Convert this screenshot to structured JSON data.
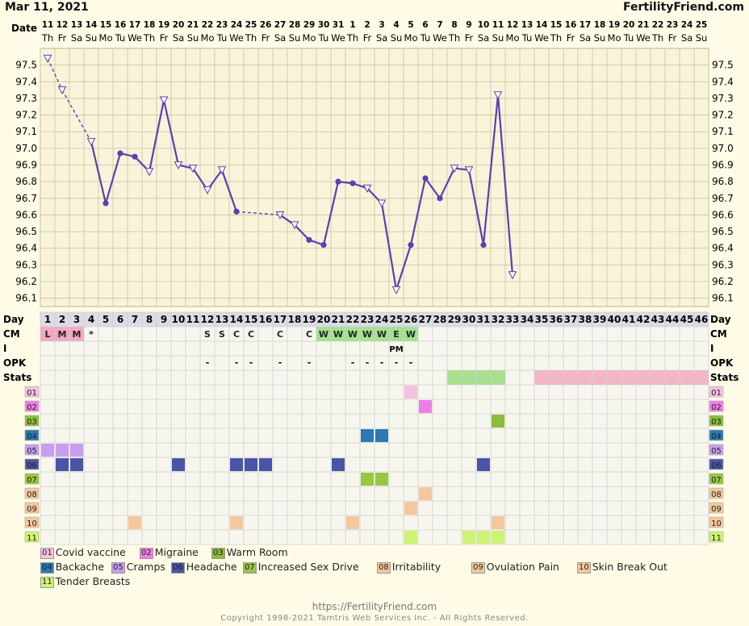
{
  "header": {
    "date": "Mar 11, 2021",
    "site": "FertilityFriend.com"
  },
  "footer": {
    "url": "https://FertilityFriend.com",
    "copyright": "Copyright 1998-2021 Tamtris Web Services Inc. - All Rights Reserved."
  },
  "colors": {
    "line": "#5a3fb5",
    "grid": "#c8c3a3",
    "plot_bg": "#f9f4d9",
    "table_bg": "#f7f6ee"
  },
  "chart_data": {
    "type": "line",
    "title": "",
    "ylabel": "",
    "ylim": [
      96.05,
      97.6
    ],
    "y_ticks": [
      "97.5",
      "97.4",
      "97.3",
      "97.2",
      "97.1",
      "97.0",
      "96.9",
      "96.8",
      "96.7",
      "96.6",
      "96.5",
      "96.4",
      "96.3",
      "96.2",
      "96.1"
    ],
    "row_labels": {
      "date": "Date",
      "day": "Day",
      "cm": "CM",
      "i": "I",
      "opk": "OPK",
      "stats": "Stats"
    },
    "dates": [
      "11",
      "12",
      "13",
      "14",
      "15",
      "16",
      "17",
      "18",
      "19",
      "20",
      "21",
      "22",
      "23",
      "24",
      "25",
      "26",
      "27",
      "28",
      "29",
      "30",
      "31",
      "1",
      "2",
      "3",
      "4",
      "5",
      "6",
      "7",
      "8",
      "9",
      "10",
      "11",
      "12",
      "13",
      "14",
      "15",
      "16",
      "17",
      "18",
      "19",
      "20",
      "21",
      "22",
      "23",
      "24",
      "25"
    ],
    "weekdays": [
      "Th",
      "Fr",
      "Sa",
      "Su",
      "Mo",
      "Tu",
      "We",
      "Th",
      "Fr",
      "Sa",
      "Su",
      "Mo",
      "Tu",
      "We",
      "Th",
      "Fr",
      "Sa",
      "Su",
      "Mo",
      "Tu",
      "We",
      "Th",
      "Fr",
      "Sa",
      "Su",
      "Mo",
      "Tu",
      "We",
      "Th",
      "Fr",
      "Sa",
      "Su",
      "Mo",
      "Tu",
      "We",
      "Th",
      "Fr",
      "Sa",
      "Su",
      "Mo",
      "Tu",
      "We",
      "Th",
      "Fr",
      "Sa",
      "Su"
    ],
    "days": [
      "1",
      "2",
      "3",
      "4",
      "5",
      "6",
      "7",
      "8",
      "9",
      "10",
      "11",
      "12",
      "13",
      "14",
      "15",
      "16",
      "17",
      "18",
      "19",
      "20",
      "21",
      "22",
      "23",
      "24",
      "25",
      "26",
      "27",
      "28",
      "29",
      "30",
      "31",
      "32",
      "33",
      "34",
      "35",
      "36",
      "37",
      "38",
      "39",
      "40",
      "41",
      "42",
      "43",
      "44",
      "45",
      "46"
    ],
    "temps": [
      {
        "day": 1,
        "y": 97.54,
        "m": "tri"
      },
      {
        "day": 2,
        "y": 97.35,
        "m": "tri"
      },
      {
        "day": 4,
        "y": 97.04,
        "m": "tri"
      },
      {
        "day": 5,
        "y": 96.67,
        "m": "dot"
      },
      {
        "day": 6,
        "y": 96.97,
        "m": "dot"
      },
      {
        "day": 7,
        "y": 96.95,
        "m": "dot"
      },
      {
        "day": 8,
        "y": 96.86,
        "m": "tri"
      },
      {
        "day": 9,
        "y": 97.29,
        "m": "tri"
      },
      {
        "day": 10,
        "y": 96.9,
        "m": "tri"
      },
      {
        "day": 11,
        "y": 96.88,
        "m": "tri"
      },
      {
        "day": 12,
        "y": 96.75,
        "m": "tri"
      },
      {
        "day": 13,
        "y": 96.87,
        "m": "tri"
      },
      {
        "day": 14,
        "y": 96.62,
        "m": "dot"
      },
      {
        "day": 17,
        "y": 96.6,
        "m": "tri"
      },
      {
        "day": 18,
        "y": 96.54,
        "m": "tri"
      },
      {
        "day": 19,
        "y": 96.45,
        "m": "dot"
      },
      {
        "day": 20,
        "y": 96.42,
        "m": "dot"
      },
      {
        "day": 21,
        "y": 96.8,
        "m": "dot"
      },
      {
        "day": 22,
        "y": 96.79,
        "m": "dot"
      },
      {
        "day": 23,
        "y": 96.76,
        "m": "tri"
      },
      {
        "day": 24,
        "y": 96.67,
        "m": "tri"
      },
      {
        "day": 25,
        "y": 96.15,
        "m": "tri"
      },
      {
        "day": 26,
        "y": 96.42,
        "m": "dot"
      },
      {
        "day": 27,
        "y": 96.82,
        "m": "dot"
      },
      {
        "day": 28,
        "y": 96.7,
        "m": "dot"
      },
      {
        "day": 29,
        "y": 96.88,
        "m": "tri"
      },
      {
        "day": 30,
        "y": 96.87,
        "m": "tri"
      },
      {
        "day": 31,
        "y": 96.42,
        "m": "dot"
      },
      {
        "day": 32,
        "y": 97.32,
        "m": "tri"
      },
      {
        "day": 33,
        "y": 96.24,
        "m": "tri"
      }
    ],
    "dashed_segments": [
      [
        1,
        2
      ],
      [
        2,
        4
      ],
      [
        14,
        17
      ]
    ],
    "solid_segments": [
      [
        4,
        5
      ],
      [
        5,
        6
      ],
      [
        6,
        7
      ],
      [
        7,
        8
      ],
      [
        8,
        9
      ],
      [
        9,
        10
      ],
      [
        10,
        11
      ],
      [
        11,
        12
      ],
      [
        12,
        13
      ],
      [
        13,
        14
      ],
      [
        17,
        18
      ],
      [
        18,
        19
      ],
      [
        19,
        20
      ],
      [
        20,
        21
      ],
      [
        21,
        22
      ],
      [
        22,
        23
      ],
      [
        23,
        24
      ],
      [
        24,
        25
      ],
      [
        25,
        26
      ],
      [
        26,
        27
      ],
      [
        27,
        28
      ],
      [
        28,
        29
      ],
      [
        29,
        30
      ],
      [
        30,
        31
      ],
      [
        31,
        32
      ],
      [
        32,
        33
      ]
    ],
    "cm": [
      {
        "day": 1,
        "v": "L",
        "c": "#f2a7c3"
      },
      {
        "day": 2,
        "v": "M",
        "c": "#f2a7c3"
      },
      {
        "day": 3,
        "v": "M",
        "c": "#f2a7c3"
      },
      {
        "day": 4,
        "v": "*",
        "c": ""
      },
      {
        "day": 12,
        "v": "S",
        "c": ""
      },
      {
        "day": 13,
        "v": "S",
        "c": ""
      },
      {
        "day": 14,
        "v": "C",
        "c": ""
      },
      {
        "day": 15,
        "v": "C",
        "c": ""
      },
      {
        "day": 17,
        "v": "C",
        "c": ""
      },
      {
        "day": 19,
        "v": "C",
        "c": ""
      },
      {
        "day": 20,
        "v": "W",
        "c": "#a3e28f"
      },
      {
        "day": 21,
        "v": "W",
        "c": "#a3e28f"
      },
      {
        "day": 22,
        "v": "W",
        "c": "#a3e28f"
      },
      {
        "day": 23,
        "v": "W",
        "c": "#a3e28f"
      },
      {
        "day": 24,
        "v": "W",
        "c": "#a3e28f"
      },
      {
        "day": 25,
        "v": "E",
        "c": "#a3e28f"
      },
      {
        "day": 26,
        "v": "W",
        "c": "#a3e28f"
      }
    ],
    "intercourse": [
      {
        "day": 25,
        "v": "PM"
      }
    ],
    "opk": [
      {
        "day": 12,
        "v": "-"
      },
      {
        "day": 14,
        "v": "-"
      },
      {
        "day": 15,
        "v": "-"
      },
      {
        "day": 17,
        "v": "-"
      },
      {
        "day": 19,
        "v": "-"
      },
      {
        "day": 22,
        "v": "-"
      },
      {
        "day": 23,
        "v": "-"
      },
      {
        "day": 24,
        "v": "-"
      },
      {
        "day": 25,
        "v": "-"
      },
      {
        "day": 26,
        "v": "-"
      }
    ],
    "stats": [
      {
        "from": 29,
        "to": 32,
        "c": "#a8e08f"
      },
      {
        "from": 35,
        "to": 46,
        "c": "#f3b6c8"
      }
    ],
    "symptoms": [
      {
        "code": "01",
        "name": "Covid vaccine",
        "c": "#f4c2e0",
        "days": [
          26
        ]
      },
      {
        "code": "02",
        "name": "Migraine",
        "c": "#f07ee6",
        "days": [
          27
        ]
      },
      {
        "code": "03",
        "name": "Warm Room",
        "c": "#8dbb3a",
        "days": [
          32
        ]
      },
      {
        "code": "04",
        "name": "Backache",
        "c": "#2b79b5",
        "days": [
          23,
          24
        ]
      },
      {
        "code": "05",
        "name": "Cramps",
        "c": "#c79ef2",
        "days": [
          1,
          2,
          3
        ]
      },
      {
        "code": "06",
        "name": "Headache",
        "c": "#4a55a8",
        "days": [
          2,
          3,
          10,
          14,
          15,
          16,
          21,
          31
        ]
      },
      {
        "code": "07",
        "name": "Increased Sex Drive",
        "c": "#98c83f",
        "days": [
          23,
          24
        ]
      },
      {
        "code": "08",
        "name": "Irritability",
        "c": "#f5c79c",
        "days": [
          27
        ]
      },
      {
        "code": "09",
        "name": "Ovulation Pain",
        "c": "#f5c79c",
        "days": [
          26
        ]
      },
      {
        "code": "10",
        "name": "Skin Break Out",
        "c": "#f5c79c",
        "days": [
          7,
          14,
          22,
          32
        ]
      },
      {
        "code": "11",
        "name": "Tender Breasts",
        "c": "#ccf472",
        "days": [
          26,
          30,
          31,
          32
        ]
      }
    ]
  }
}
